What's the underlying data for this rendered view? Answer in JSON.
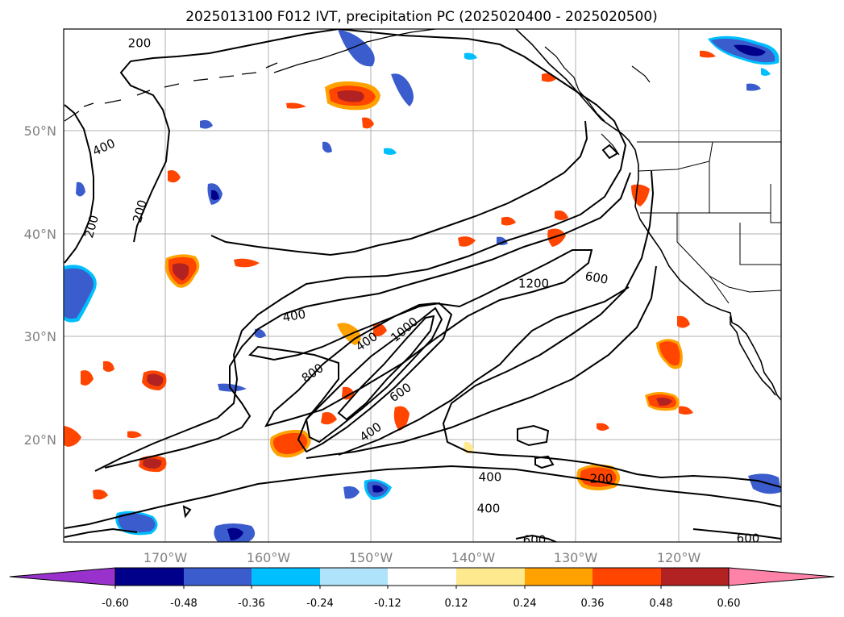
{
  "title": "2025013100 F012 IVT, precipitation PC (2025020400 - 2025020500)",
  "lat_labels": [
    "50°N",
    "40°N",
    "30°N",
    "20°N"
  ],
  "lon_labels": [
    "170°W",
    "160°W",
    "150°W",
    "140°W",
    "130°W",
    "120°W"
  ],
  "colorbar": {
    "ticks": [
      "-0.60",
      "-0.48",
      "-0.36",
      "-0.24",
      "-0.12",
      "0.12",
      "0.24",
      "0.36",
      "0.48",
      "0.60"
    ],
    "colors": [
      "#9932cc",
      "#00008b",
      "#3a5ccc",
      "#00bfff",
      "#afe3fb",
      "#ffffff",
      "#ffe98e",
      "#ffa200",
      "#ff4500",
      "#b22222",
      "#ff82a9"
    ]
  },
  "contour_labels": [
    "200",
    "400",
    "200",
    "200",
    "400",
    "400",
    "800",
    "1000",
    "1200",
    "600",
    "400",
    "600",
    "600",
    "200",
    "400",
    "600",
    "400"
  ],
  "style": {
    "contour_color": "#000000",
    "grid_color": "#b0b0b0",
    "coast_color": "#000000",
    "axes": "lat-lon map, grid on"
  }
}
